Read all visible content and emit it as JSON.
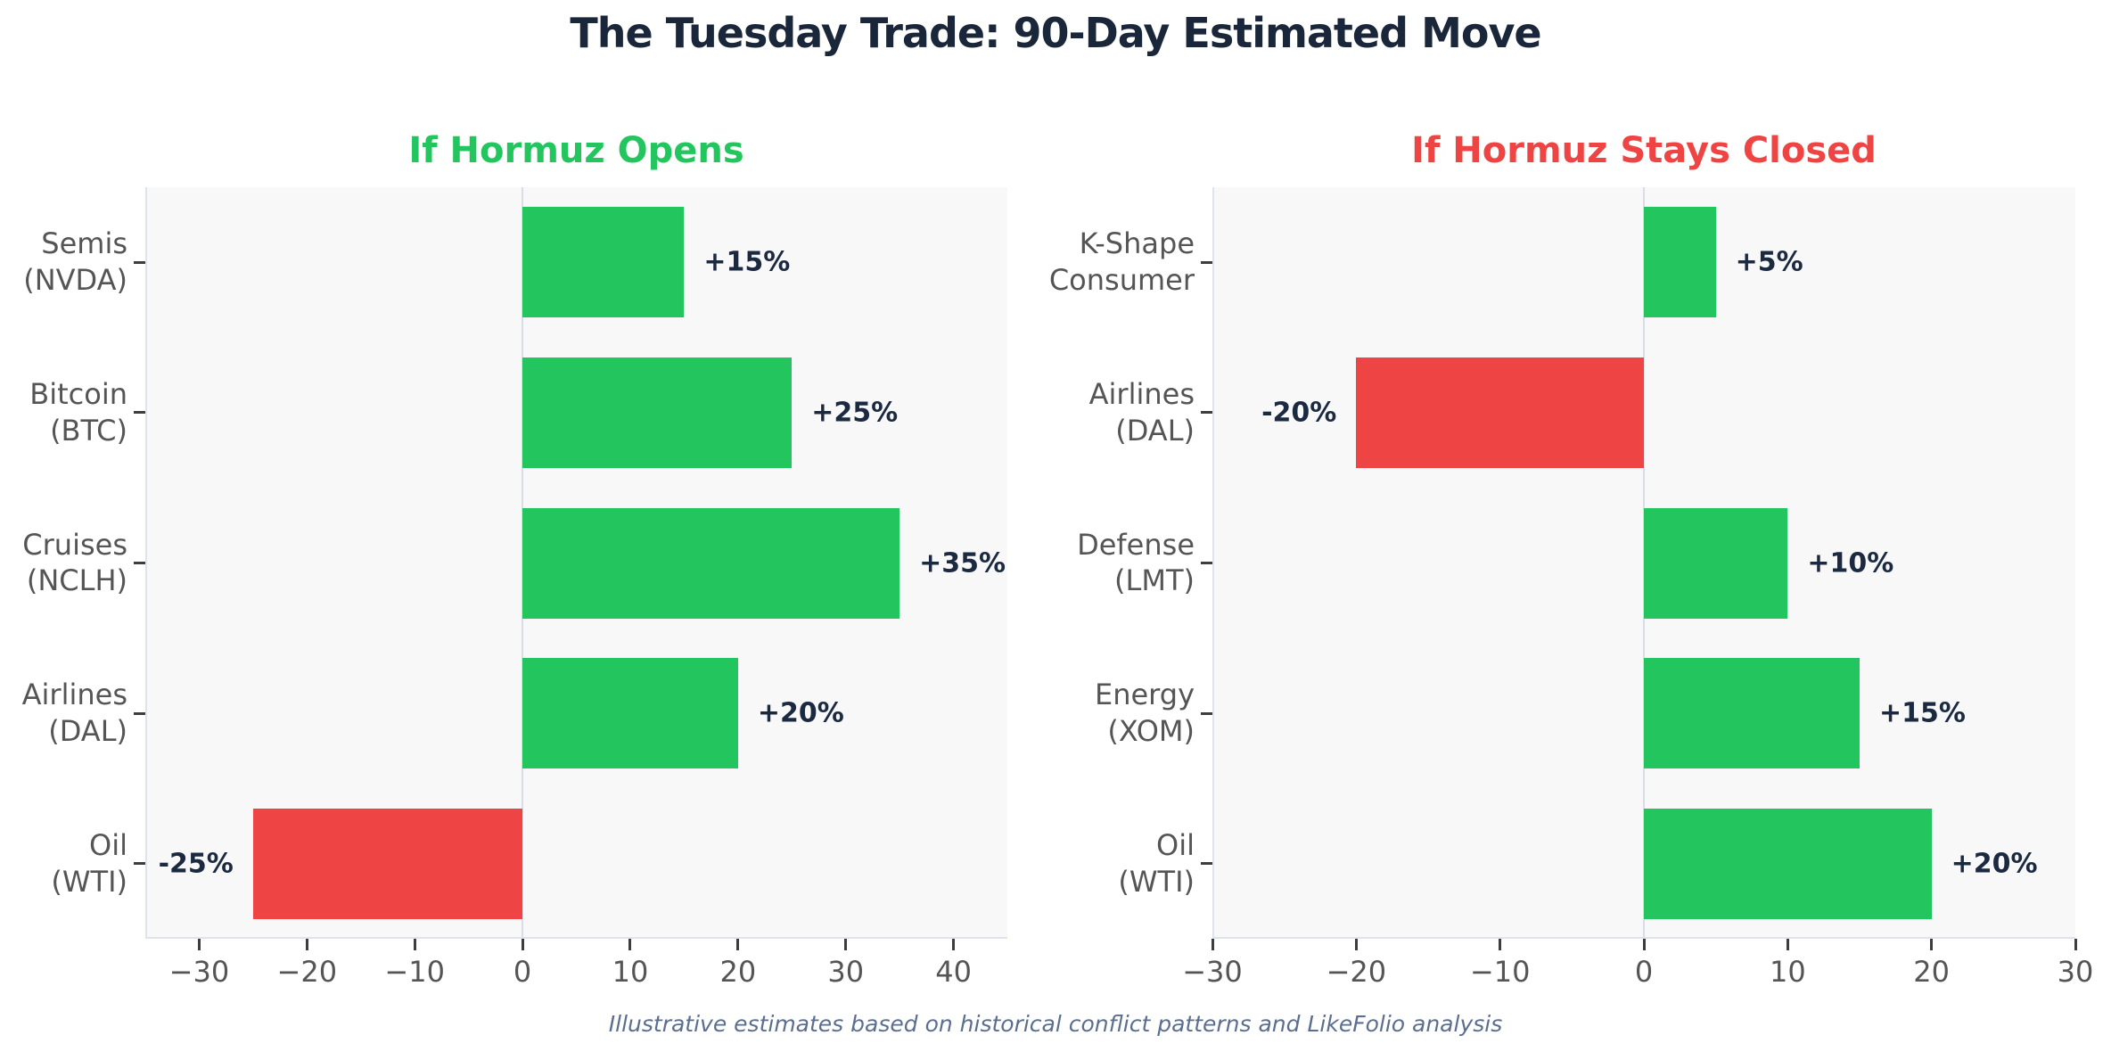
{
  "title": "The Tuesday Trade: 90-Day Estimated Move",
  "footer": "Illustrative estimates based on historical conflict patterns and LikeFolio analysis",
  "colors": {
    "positive_bar": "#22c55e",
    "negative_bar": "#ef4444",
    "title_text": "#1a2639",
    "value_label_text": "#1b2a40",
    "axis_text": "#555555",
    "footer_text": "#5c6e8e",
    "plot_background": "#f8f8f9"
  },
  "chart_data": [
    {
      "type": "bar",
      "orientation": "horizontal",
      "title": "If Hormuz Opens",
      "title_color": "#22c55e",
      "categories": [
        "Semis\n(NVDA)",
        "Bitcoin\n(BTC)",
        "Cruises\n(NCLH)",
        "Airlines\n(DAL)",
        "Oil\n(WTI)"
      ],
      "values": [
        15,
        25,
        35,
        20,
        -25
      ],
      "value_labels": [
        "+15%",
        "+25%",
        "+35%",
        "+20%",
        "-25%"
      ],
      "xlim": [
        -35,
        45
      ],
      "xticks": [
        -30,
        -20,
        -10,
        0,
        10,
        20,
        30,
        40
      ],
      "xtick_labels": [
        "−30",
        "−20",
        "−10",
        "0",
        "10",
        "20",
        "30",
        "40"
      ],
      "grid": false,
      "legend": "none"
    },
    {
      "type": "bar",
      "orientation": "horizontal",
      "title": "If Hormuz Stays Closed",
      "title_color": "#ef4444",
      "categories": [
        "K-Shape\nConsumer",
        "Airlines\n(DAL)",
        "Defense\n(LMT)",
        "Energy\n(XOM)",
        "Oil\n(WTI)"
      ],
      "values": [
        5,
        -20,
        10,
        15,
        20
      ],
      "value_labels": [
        "+5%",
        "-20%",
        "+10%",
        "+15%",
        "+20%"
      ],
      "xlim": [
        -30,
        30
      ],
      "xticks": [
        -30,
        -20,
        -10,
        0,
        10,
        20,
        30
      ],
      "xtick_labels": [
        "−30",
        "−20",
        "−10",
        "0",
        "10",
        "20",
        "30"
      ],
      "grid": false,
      "legend": "none"
    }
  ]
}
